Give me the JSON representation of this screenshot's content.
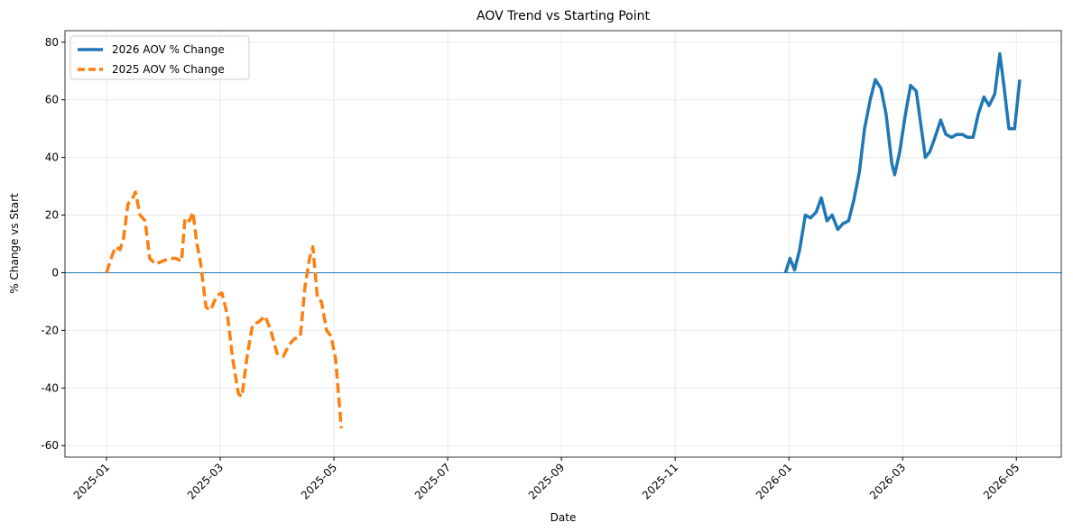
{
  "chart_data": {
    "type": "line",
    "title": "AOV Trend vs Starting Point",
    "x_label": "Date",
    "y_label": "% Change vs Start",
    "xlim": [
      -0.73,
      16.79
    ],
    "xticks": [
      {
        "value": 0,
        "label": "2025-01"
      },
      {
        "value": 2,
        "label": "2025-03"
      },
      {
        "value": 4,
        "label": "2025-05"
      },
      {
        "value": 6,
        "label": "2025-07"
      },
      {
        "value": 8,
        "label": "2025-09"
      },
      {
        "value": 10,
        "label": "2025-11"
      },
      {
        "value": 12,
        "label": "2026-01"
      },
      {
        "value": 14,
        "label": "2026-03"
      },
      {
        "value": 16,
        "label": "2026-05"
      }
    ],
    "ylim": [
      -64,
      84
    ],
    "yticks": [
      -60,
      -40,
      -20,
      0,
      20,
      40,
      60,
      80
    ],
    "grid": true,
    "hline": 0,
    "legend": "upper left",
    "series": [
      {
        "name": "2026 AOV % Change",
        "color": "#1f77b4",
        "dash": "solid",
        "x": [
          11.94,
          12.02,
          12.1,
          12.19,
          12.29,
          12.38,
          12.48,
          12.57,
          12.67,
          12.76,
          12.86,
          12.95,
          13.05,
          13.14,
          13.24,
          13.33,
          13.43,
          13.52,
          13.62,
          13.71,
          13.81,
          13.86,
          13.95,
          14.05,
          14.14,
          14.24,
          14.33,
          14.4,
          14.48,
          14.57,
          14.67,
          14.76,
          14.86,
          14.95,
          15.05,
          15.14,
          15.24,
          15.33,
          15.43,
          15.52,
          15.62,
          15.71,
          15.78,
          15.87,
          15.97,
          16.06
        ],
        "values": [
          0,
          5,
          1,
          8,
          20,
          19,
          21,
          26,
          18,
          20,
          15,
          17,
          18,
          25,
          35,
          50,
          60,
          67,
          64,
          55,
          38,
          34,
          42,
          55,
          65,
          63,
          50,
          40,
          42,
          47,
          53,
          48,
          47,
          48,
          48,
          47,
          47,
          55,
          61,
          58,
          62,
          76,
          65,
          50,
          50,
          67
        ]
      },
      {
        "name": "2025 AOV % Change",
        "color": "#ff7f0e",
        "dash": "dashed",
        "x": [
          0,
          0.1,
          0.16,
          0.24,
          0.3,
          0.38,
          0.44,
          0.51,
          0.59,
          0.68,
          0.76,
          0.86,
          0.98,
          1.11,
          1.22,
          1.32,
          1.38,
          1.46,
          1.52,
          1.59,
          1.65,
          1.75,
          1.83,
          1.94,
          2.03,
          2.13,
          2.22,
          2.32,
          2.38,
          2.48,
          2.57,
          2.68,
          2.79,
          2.89,
          3.0,
          3.11,
          3.21,
          3.3,
          3.41,
          3.49,
          3.57,
          3.63,
          3.71,
          3.78,
          3.87,
          3.95,
          4.03,
          4.13
        ],
        "values": [
          0,
          6,
          9,
          8,
          12,
          24,
          25,
          28,
          20,
          18,
          5,
          3,
          4,
          5,
          5,
          4,
          19,
          18,
          21,
          10,
          4,
          -12,
          -13,
          -8,
          -7,
          -15,
          -30,
          -42,
          -43,
          -28,
          -18,
          -17,
          -15,
          -20,
          -28,
          -29,
          -25,
          -23,
          -22,
          -5,
          5,
          9,
          -9,
          -10,
          -20,
          -22,
          -30,
          -54
        ]
      }
    ]
  }
}
